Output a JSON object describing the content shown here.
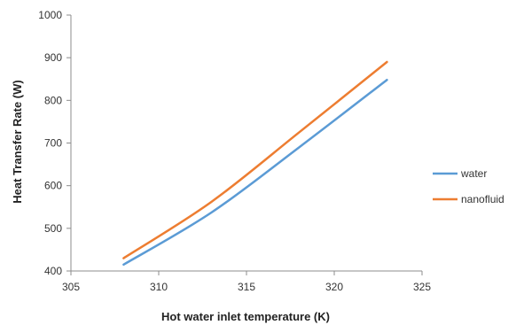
{
  "chart_data": {
    "type": "line",
    "title": "",
    "xlabel": "Hot water inlet temperature (K)",
    "ylabel": "Heat Transfer Rate (W)",
    "xlim": [
      305,
      325
    ],
    "ylim": [
      400,
      1000
    ],
    "xticks": [
      "305",
      "310",
      "315",
      "320",
      "325"
    ],
    "yticks": [
      "400",
      "500",
      "600",
      "700",
      "800",
      "900",
      "1000"
    ],
    "grid": false,
    "legend_position": "right",
    "series": [
      {
        "name": "water",
        "color": "#5b9bd5",
        "x": [
          308,
          313,
          318,
          323
        ],
        "y": [
          415,
          537,
          690,
          848
        ]
      },
      {
        "name": "nanofluid",
        "color": "#ed7d31",
        "x": [
          308,
          313,
          318,
          323
        ],
        "y": [
          430,
          562,
          725,
          890
        ]
      }
    ]
  }
}
